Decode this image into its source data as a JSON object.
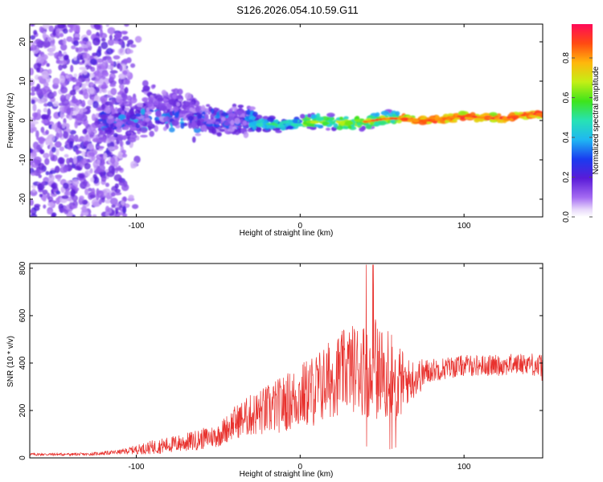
{
  "title": "S126.2026.054.10.59.G11",
  "colors": {
    "snr_line": "#e8322e",
    "frame": "#000000"
  },
  "chart_data": [
    {
      "type": "heatmap",
      "name": "spectrogram",
      "xlabel": "Height of straight line (km)",
      "ylabel": "Frequency (Hz)",
      "xlim": [
        -165,
        148
      ],
      "ylim": [
        -24.5,
        24.5
      ],
      "x_ticks": [
        -100,
        0,
        100
      ],
      "y_ticks": [
        -20,
        -10,
        0,
        10,
        20
      ],
      "colorbar": {
        "label": "Normalized spectral amplitude",
        "range": [
          0,
          0.97
        ],
        "ticks": [
          "0.0",
          "0.2",
          "0.4",
          "0.6",
          "0.8"
        ]
      },
      "features": [
        {
          "region": "broadband noise",
          "x_range": [
            -165,
            -110
          ],
          "freq_range": [
            -24,
            24
          ]
        },
        {
          "region": "emerging signal",
          "x_range": [
            -120,
            -30
          ],
          "freq_range": [
            -8,
            12
          ]
        },
        {
          "region": "coherent tone",
          "x_range": [
            -30,
            148
          ],
          "freq_center": [
            -1,
            1.5
          ],
          "amplitude_peak": 0.95
        }
      ]
    },
    {
      "type": "line",
      "name": "snr",
      "xlabel": "Height of straight line (km)",
      "ylabel": "SNR (10 * v/v)",
      "xlim": [
        -165,
        148
      ],
      "ylim": [
        0,
        820
      ],
      "x_ticks": [
        -100,
        0,
        100
      ],
      "y_ticks": [
        0,
        200,
        400,
        600,
        800
      ],
      "envelope_x": [
        -165,
        -130,
        -110,
        -90,
        -70,
        -50,
        -40,
        -30,
        -20,
        -10,
        0,
        10,
        20,
        30,
        38,
        45,
        50,
        55,
        60,
        65,
        80,
        100,
        120,
        140,
        148
      ],
      "envelope_y": [
        15,
        15,
        25,
        45,
        65,
        95,
        150,
        180,
        200,
        230,
        260,
        290,
        340,
        380,
        380,
        380,
        360,
        340,
        320,
        320,
        370,
        390,
        390,
        400,
        380
      ],
      "noise_amplitude": [
        6,
        6,
        10,
        30,
        40,
        50,
        70,
        90,
        110,
        120,
        140,
        160,
        170,
        180,
        200,
        220,
        200,
        190,
        170,
        100,
        50,
        45,
        45,
        45,
        60
      ]
    }
  ]
}
